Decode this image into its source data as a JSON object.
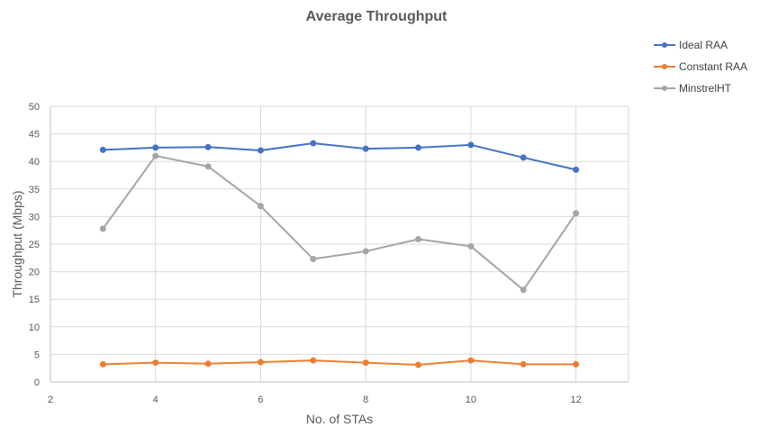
{
  "chart_data": {
    "type": "line",
    "title": "Average Throughput",
    "xlabel": "No. of STAs",
    "ylabel": "Throughput (Mbps)",
    "xlim": [
      2,
      13
    ],
    "ylim": [
      0,
      50
    ],
    "x_ticks": [
      2,
      4,
      6,
      8,
      10,
      12
    ],
    "y_ticks": [
      0,
      5,
      10,
      15,
      20,
      25,
      30,
      35,
      40,
      45,
      50
    ],
    "grid": "on",
    "legend_position": "top-right",
    "x": [
      3,
      4,
      5,
      6,
      7,
      8,
      9,
      10,
      11,
      12
    ],
    "series": [
      {
        "name": "Ideal RAA",
        "color": "#4472c4",
        "values": [
          42.1,
          42.5,
          42.6,
          42.0,
          43.3,
          42.3,
          42.5,
          43.0,
          40.7,
          38.5
        ]
      },
      {
        "name": "Constant RAA",
        "color": "#ed7d31",
        "values": [
          3.2,
          3.5,
          3.3,
          3.6,
          3.9,
          3.5,
          3.1,
          3.9,
          3.2,
          3.2
        ]
      },
      {
        "name": "MinstrelHT",
        "color": "#a5a5a5",
        "values": [
          27.8,
          41.0,
          39.1,
          31.9,
          22.3,
          23.7,
          25.9,
          24.6,
          16.7,
          30.6
        ]
      }
    ]
  }
}
